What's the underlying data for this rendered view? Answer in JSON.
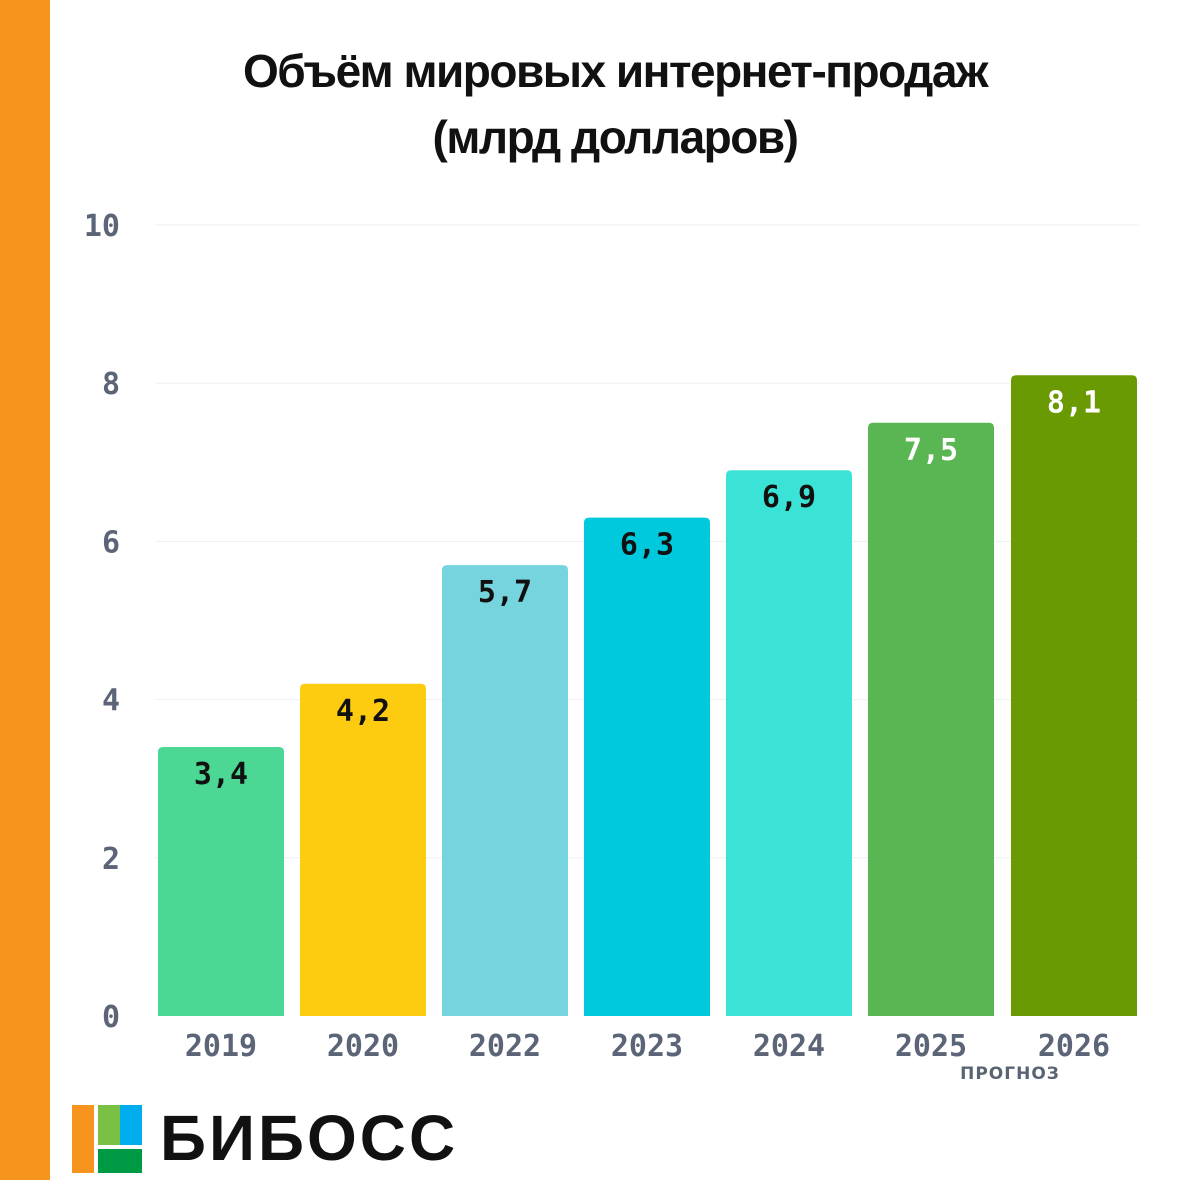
{
  "title": {
    "line1": "Объём мировых интернет-продаж",
    "line2": "(млрд долларов)"
  },
  "brand": {
    "name": "БИБОСС",
    "logo_colors": [
      "#f7941d",
      "#7ac143",
      "#00aeef",
      "#009a44"
    ]
  },
  "chart_data": {
    "type": "bar",
    "title": "Объём мировых интернет-продаж (млрд долларов)",
    "xlabel": "",
    "ylabel": "",
    "ylim": [
      0,
      10
    ],
    "yticks": [
      0,
      2,
      4,
      6,
      8,
      10
    ],
    "categories": [
      "2019",
      "2020",
      "2022",
      "2023",
      "2024",
      "2025",
      "2026"
    ],
    "values": [
      3.4,
      4.2,
      5.7,
      6.3,
      6.9,
      7.5,
      8.1
    ],
    "value_labels": [
      "3,4",
      "4,2",
      "5,7",
      "6,3",
      "6,9",
      "7,5",
      "8,1"
    ],
    "colors": [
      "#4cd894",
      "#fdcb0f",
      "#76d4df",
      "#01c9dd",
      "#3be3d6",
      "#5ab652",
      "#6a9a02"
    ],
    "label_colors": [
      "#111111",
      "#111111",
      "#111111",
      "#111111",
      "#111111",
      "#ffffff",
      "#ffffff"
    ],
    "annotation": "ПРОГНОЗ",
    "grid": true
  }
}
